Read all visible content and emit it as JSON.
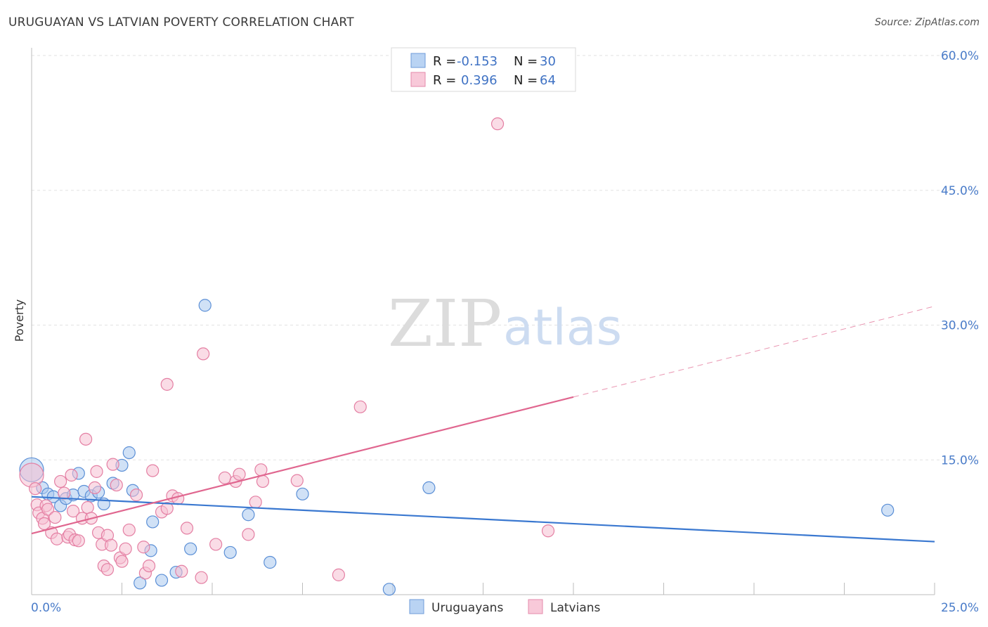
{
  "header": {
    "title": "URUGUAYAN VS LATVIAN POVERTY CORRELATION CHART",
    "source": "Source: ZipAtlas.com"
  },
  "watermark": {
    "zip": "ZIP",
    "atlas": "atlas"
  },
  "colors": {
    "blue_fill": "#a9c8ef",
    "blue_stroke": "#5b8fd6",
    "blue_line": "#3a78d0",
    "pink_fill": "#f6bfd1",
    "pink_stroke": "#e47fa3",
    "pink_line": "#e0668f",
    "grid": "#e2e2e2",
    "axis_text": "#4a7cc9"
  },
  "legend": {
    "rows": [
      {
        "r_label": "R =",
        "r_value": "-0.153",
        "n_label": "N =",
        "n_value": "30",
        "series": "Uruguayans"
      },
      {
        "r_label": "R =",
        "r_value": "0.396",
        "n_label": "N =",
        "n_value": "64",
        "series": "Latvians"
      }
    ]
  },
  "bottom_legend": {
    "items": [
      "Uruguayans",
      "Latvians"
    ]
  },
  "chart_data": {
    "type": "scatter",
    "title": "URUGUAYAN VS LATVIAN POVERTY CORRELATION CHART",
    "xlabel": "",
    "ylabel": "Poverty",
    "xlim": [
      0,
      25
    ],
    "ylim": [
      0,
      63
    ],
    "x_tick_labels": [
      {
        "value": 0,
        "label": "0.0%"
      },
      {
        "value": 25,
        "label": "25.0%"
      }
    ],
    "y_tick_labels": [
      {
        "value": 15,
        "label": "15.0%"
      },
      {
        "value": 30,
        "label": "30.0%"
      },
      {
        "value": 45,
        "label": "45.0%"
      },
      {
        "value": 60,
        "label": "60.0%"
      }
    ],
    "x_minor_ticks": [
      0,
      2.5,
      5,
      7.5,
      10,
      12.5,
      15,
      17.5,
      20,
      22.5,
      25
    ],
    "y_grid": [
      15,
      30,
      45,
      60
    ],
    "series": [
      {
        "name": "Uruguayans",
        "R": -0.153,
        "N": 30,
        "points": [
          [
            0.0,
            13.9
          ],
          [
            0.3,
            11.9
          ],
          [
            0.45,
            11.2
          ],
          [
            0.6,
            10.9
          ],
          [
            0.8,
            9.9
          ],
          [
            0.95,
            10.7
          ],
          [
            1.15,
            11.1
          ],
          [
            1.3,
            13.5
          ],
          [
            1.45,
            11.5
          ],
          [
            1.65,
            11.0
          ],
          [
            1.85,
            11.4
          ],
          [
            2.0,
            10.1
          ],
          [
            2.25,
            12.4
          ],
          [
            2.5,
            14.4
          ],
          [
            2.7,
            15.8
          ],
          [
            2.8,
            11.6
          ],
          [
            3.0,
            1.3
          ],
          [
            3.3,
            4.9
          ],
          [
            3.35,
            8.1
          ],
          [
            3.6,
            1.6
          ],
          [
            4.0,
            2.5
          ],
          [
            4.4,
            5.1
          ],
          [
            4.8,
            32.2
          ],
          [
            5.5,
            4.7
          ],
          [
            6.0,
            8.9
          ],
          [
            6.6,
            3.6
          ],
          [
            7.5,
            11.2
          ],
          [
            9.9,
            0.6
          ],
          [
            11.0,
            11.9
          ],
          [
            23.7,
            9.4
          ]
        ],
        "trend": {
          "x": [
            0,
            25
          ],
          "y": [
            10.9,
            5.9
          ],
          "style": "solid"
        }
      },
      {
        "name": "Latvians",
        "R": 0.396,
        "N": 64,
        "points": [
          [
            0.0,
            13.3
          ],
          [
            0.15,
            10.0
          ],
          [
            0.2,
            9.1
          ],
          [
            0.3,
            8.5
          ],
          [
            0.35,
            7.9
          ],
          [
            0.4,
            9.9
          ],
          [
            0.45,
            9.5
          ],
          [
            0.55,
            6.9
          ],
          [
            0.65,
            8.6
          ],
          [
            0.7,
            6.2
          ],
          [
            0.8,
            12.6
          ],
          [
            0.9,
            11.3
          ],
          [
            1.0,
            6.4
          ],
          [
            1.05,
            6.7
          ],
          [
            1.1,
            13.3
          ],
          [
            1.15,
            9.3
          ],
          [
            1.2,
            6.1
          ],
          [
            1.3,
            6.0
          ],
          [
            1.4,
            8.5
          ],
          [
            1.5,
            17.3
          ],
          [
            1.55,
            9.7
          ],
          [
            1.65,
            8.5
          ],
          [
            1.75,
            11.9
          ],
          [
            1.8,
            13.7
          ],
          [
            1.85,
            6.9
          ],
          [
            1.95,
            5.6
          ],
          [
            2.0,
            3.2
          ],
          [
            2.1,
            6.6
          ],
          [
            2.2,
            5.5
          ],
          [
            2.25,
            14.5
          ],
          [
            2.35,
            12.2
          ],
          [
            2.45,
            4.1
          ],
          [
            2.5,
            3.7
          ],
          [
            2.6,
            5.1
          ],
          [
            2.7,
            7.2
          ],
          [
            2.9,
            11.1
          ],
          [
            3.1,
            5.3
          ],
          [
            3.15,
            2.4
          ],
          [
            3.25,
            3.2
          ],
          [
            3.35,
            13.8
          ],
          [
            3.6,
            9.2
          ],
          [
            3.75,
            9.6
          ],
          [
            3.75,
            23.4
          ],
          [
            3.9,
            11.0
          ],
          [
            4.05,
            10.7
          ],
          [
            4.15,
            2.6
          ],
          [
            4.3,
            7.4
          ],
          [
            4.7,
            1.9
          ],
          [
            4.75,
            26.8
          ],
          [
            5.1,
            5.6
          ],
          [
            5.35,
            13.0
          ],
          [
            5.65,
            12.6
          ],
          [
            5.75,
            13.4
          ],
          [
            6.0,
            6.7
          ],
          [
            6.35,
            13.9
          ],
          [
            6.2,
            10.3
          ],
          [
            6.4,
            12.6
          ],
          [
            7.35,
            12.7
          ],
          [
            8.5,
            2.2
          ],
          [
            9.1,
            20.9
          ],
          [
            12.9,
            52.4
          ],
          [
            14.3,
            7.1
          ],
          [
            2.1,
            2.8
          ],
          [
            0.1,
            11.8
          ]
        ],
        "trend": {
          "x": [
            0,
            15
          ],
          "y": [
            6.8,
            22.0
          ],
          "style": "solid"
        },
        "trend_extension": {
          "x": [
            15,
            25
          ],
          "y": [
            22.0,
            32.1
          ],
          "style": "dashed"
        }
      }
    ],
    "legend_position": "top-center"
  }
}
